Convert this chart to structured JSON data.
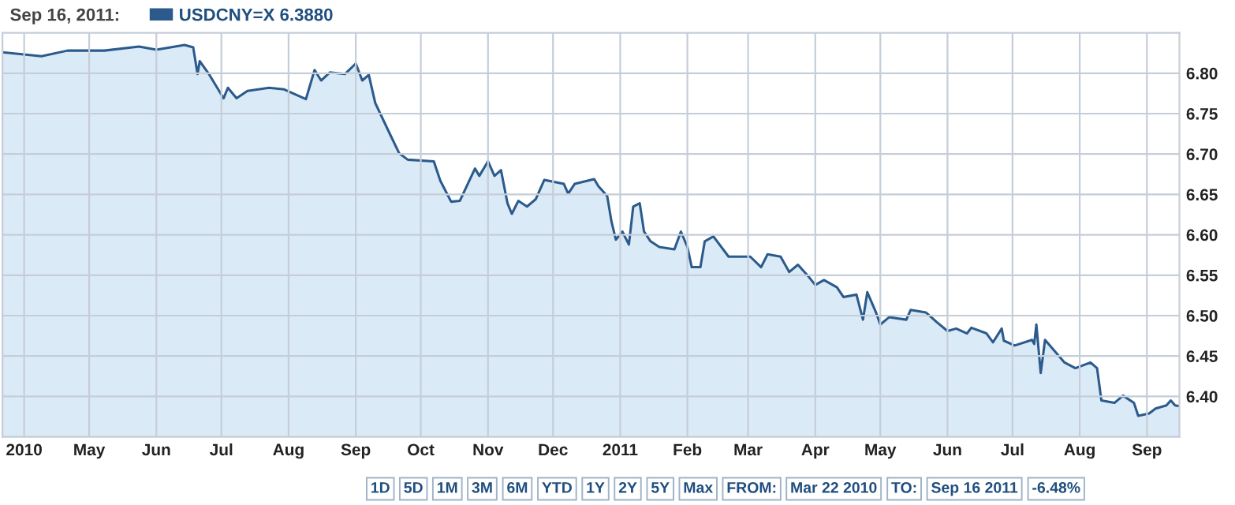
{
  "chart_data": {
    "type": "area",
    "title": "Sep 16, 2011:",
    "x": [
      "2010-03-22",
      "2010-04-09",
      "2010-04-21",
      "2010-05-08",
      "2010-05-24",
      "2010-06-01",
      "2010-06-14",
      "2010-06-18",
      "2010-06-20",
      "2010-06-21",
      "2010-06-25",
      "2010-07-02",
      "2010-07-04",
      "2010-07-08",
      "2010-07-13",
      "2010-07-23",
      "2010-07-30",
      "2010-08-09",
      "2010-08-13",
      "2010-08-16",
      "2010-08-20",
      "2010-08-27",
      "2010-09-01",
      "2010-09-04",
      "2010-09-07",
      "2010-09-10",
      "2010-09-16",
      "2010-09-21",
      "2010-09-25",
      "2010-10-07",
      "2010-10-10",
      "2010-10-15",
      "2010-10-19",
      "2010-10-26",
      "2010-10-28",
      "2010-11-01",
      "2010-11-04",
      "2010-11-07",
      "2010-11-10",
      "2010-11-12",
      "2010-11-15",
      "2010-11-19",
      "2010-11-23",
      "2010-11-27",
      "2010-12-06",
      "2010-12-08",
      "2010-12-11",
      "2010-12-20",
      "2010-12-22",
      "2010-12-26",
      "2010-12-28",
      "2010-12-30",
      "2011-01-02",
      "2011-01-05",
      "2011-01-07",
      "2011-01-10",
      "2011-01-12",
      "2011-01-15",
      "2011-01-19",
      "2011-01-26",
      "2011-01-29",
      "2011-02-01",
      "2011-02-03",
      "2011-02-07",
      "2011-02-09",
      "2011-02-13",
      "2011-02-20",
      "2011-03-02",
      "2011-03-07",
      "2011-03-10",
      "2011-03-16",
      "2011-03-20",
      "2011-03-24",
      "2011-03-29",
      "2011-04-01",
      "2011-04-05",
      "2011-04-11",
      "2011-04-14",
      "2011-04-20",
      "2011-04-23",
      "2011-04-25",
      "2011-04-29",
      "2011-05-01",
      "2011-05-05",
      "2011-05-13",
      "2011-05-15",
      "2011-05-22",
      "2011-05-27",
      "2011-06-01",
      "2011-06-05",
      "2011-06-10",
      "2011-06-12",
      "2011-06-19",
      "2011-06-22",
      "2011-06-26",
      "2011-06-27",
      "2011-07-02",
      "2011-07-10",
      "2011-07-11",
      "2011-07-12",
      "2011-07-14",
      "2011-07-16",
      "2011-07-25",
      "2011-07-30",
      "2011-08-06",
      "2011-08-09",
      "2011-08-11",
      "2011-08-17",
      "2011-08-21",
      "2011-08-26",
      "2011-08-28",
      "2011-09-02",
      "2011-09-05",
      "2011-09-10",
      "2011-09-12",
      "2011-09-14",
      "2011-09-16"
    ],
    "series": [
      {
        "name": "USDCNY=X 6.3880",
        "color": "#2b5b8c",
        "values": [
          6.826,
          6.821,
          6.828,
          6.828,
          6.833,
          6.829,
          6.835,
          6.832,
          6.799,
          6.815,
          6.8,
          6.769,
          6.782,
          6.769,
          6.778,
          6.782,
          6.78,
          6.768,
          6.804,
          6.791,
          6.801,
          6.799,
          6.812,
          6.791,
          6.798,
          6.763,
          6.729,
          6.701,
          6.693,
          6.691,
          6.667,
          6.641,
          6.642,
          6.682,
          6.673,
          6.691,
          6.673,
          6.68,
          6.639,
          6.626,
          6.642,
          6.635,
          6.644,
          6.668,
          6.663,
          6.651,
          6.663,
          6.669,
          6.66,
          6.648,
          6.616,
          6.594,
          6.604,
          6.588,
          6.635,
          6.639,
          6.604,
          6.592,
          6.585,
          6.582,
          6.604,
          6.585,
          6.56,
          6.56,
          6.592,
          6.598,
          6.573,
          6.573,
          6.56,
          6.576,
          6.573,
          6.554,
          6.563,
          6.548,
          6.538,
          6.544,
          6.535,
          6.523,
          6.526,
          6.495,
          6.529,
          6.504,
          6.489,
          6.498,
          6.495,
          6.507,
          6.504,
          6.492,
          6.481,
          6.484,
          6.478,
          6.485,
          6.478,
          6.467,
          6.484,
          6.469,
          6.463,
          6.47,
          6.465,
          6.489,
          6.429,
          6.47,
          6.442,
          6.435,
          6.442,
          6.435,
          6.395,
          6.392,
          6.401,
          6.392,
          6.376,
          6.379,
          6.385,
          6.389,
          6.395,
          6.389,
          6.388
        ]
      }
    ],
    "xlim": [
      "2010-03-22",
      "2011-09-16"
    ],
    "xticks": [
      {
        "value": "2010-04-01",
        "label": "2010"
      },
      {
        "value": "2010-05-01",
        "label": "May"
      },
      {
        "value": "2010-06-01",
        "label": "Jun"
      },
      {
        "value": "2010-07-01",
        "label": "Jul"
      },
      {
        "value": "2010-08-01",
        "label": "Aug"
      },
      {
        "value": "2010-09-01",
        "label": "Sep"
      },
      {
        "value": "2010-10-01",
        "label": "Oct"
      },
      {
        "value": "2010-11-01",
        "label": "Nov"
      },
      {
        "value": "2010-12-01",
        "label": "Dec"
      },
      {
        "value": "2011-01-01",
        "label": "2011"
      },
      {
        "value": "2011-02-01",
        "label": "Feb"
      },
      {
        "value": "2011-03-01",
        "label": "Mar"
      },
      {
        "value": "2011-04-01",
        "label": "Apr"
      },
      {
        "value": "2011-05-01",
        "label": "May"
      },
      {
        "value": "2011-06-01",
        "label": "Jun"
      },
      {
        "value": "2011-07-01",
        "label": "Jul"
      },
      {
        "value": "2011-08-01",
        "label": "Aug"
      },
      {
        "value": "2011-09-01",
        "label": "Sep"
      }
    ],
    "ylim": [
      6.35,
      6.85
    ],
    "yticks": [
      {
        "value": 6.4,
        "label": "6.40"
      },
      {
        "value": 6.45,
        "label": "6.45"
      },
      {
        "value": 6.5,
        "label": "6.50"
      },
      {
        "value": 6.55,
        "label": "6.55"
      },
      {
        "value": 6.6,
        "label": "6.60"
      },
      {
        "value": 6.65,
        "label": "6.65"
      },
      {
        "value": 6.7,
        "label": "6.70"
      },
      {
        "value": 6.75,
        "label": "6.75"
      },
      {
        "value": 6.8,
        "label": "6.80"
      }
    ],
    "grid": true,
    "legend": "top left",
    "line_style": "solid",
    "marker": "none",
    "annotations": [
      "1D",
      "5D",
      "1M",
      "3M",
      "6M",
      "YTD",
      "1Y",
      "2Y",
      "5Y",
      "Max",
      "FROM:",
      "Mar 22 2010",
      "TO:",
      "Sep 16 2011",
      "-6.48%"
    ]
  }
}
